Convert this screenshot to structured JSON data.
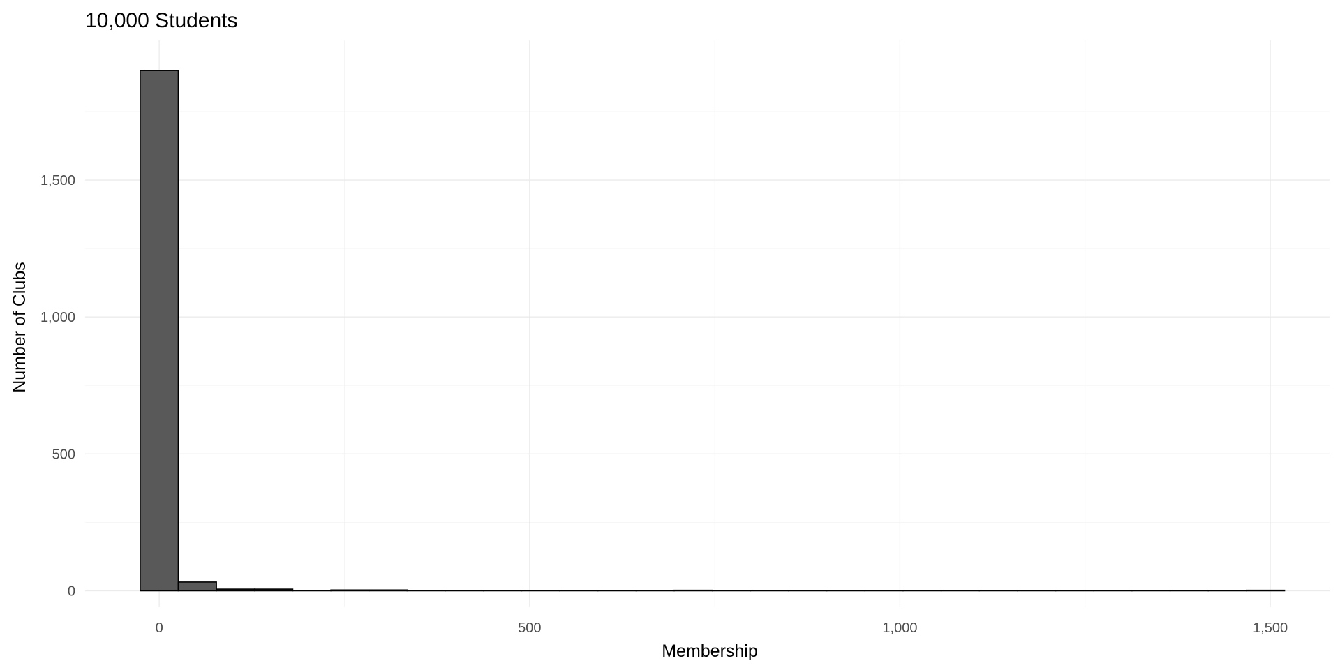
{
  "chart_data": {
    "type": "bar",
    "title": "10,000 Students",
    "xlabel": "Membership",
    "ylabel": "Number of Clubs",
    "bin_width": 51.5,
    "bins": [
      {
        "x": 0,
        "count": 1900
      },
      {
        "x": 51.5,
        "count": 32
      },
      {
        "x": 103,
        "count": 6
      },
      {
        "x": 154.5,
        "count": 6
      },
      {
        "x": 206,
        "count": 1
      },
      {
        "x": 257.5,
        "count": 3
      },
      {
        "x": 309,
        "count": 3
      },
      {
        "x": 360.5,
        "count": 1
      },
      {
        "x": 412,
        "count": 1
      },
      {
        "x": 463.5,
        "count": 1
      },
      {
        "x": 515,
        "count": 0
      },
      {
        "x": 566.5,
        "count": 0
      },
      {
        "x": 618,
        "count": 0
      },
      {
        "x": 669.5,
        "count": 1
      },
      {
        "x": 721,
        "count": 2
      },
      {
        "x": 772.5,
        "count": 0
      },
      {
        "x": 824,
        "count": 0
      },
      {
        "x": 875.5,
        "count": 0
      },
      {
        "x": 927,
        "count": 0
      },
      {
        "x": 978.5,
        "count": 0
      },
      {
        "x": 1030,
        "count": 0
      },
      {
        "x": 1081.5,
        "count": 0
      },
      {
        "x": 1133,
        "count": 0
      },
      {
        "x": 1184.5,
        "count": 0
      },
      {
        "x": 1236,
        "count": 0
      },
      {
        "x": 1287.5,
        "count": 0
      },
      {
        "x": 1339,
        "count": 0
      },
      {
        "x": 1390.5,
        "count": 0
      },
      {
        "x": 1442,
        "count": 0
      },
      {
        "x": 1493.5,
        "count": 2
      }
    ],
    "xlim": [
      -100,
      1580
    ],
    "ylim": [
      -60,
      2010
    ],
    "x_ticks": [
      0,
      500,
      1000,
      1500
    ],
    "x_tick_labels": [
      "0",
      "500",
      "1,000",
      "1,500"
    ],
    "y_ticks": [
      0,
      500,
      1000,
      1500
    ],
    "y_tick_labels": [
      "0",
      "500",
      "1,000",
      "1,500"
    ],
    "grid": true,
    "legend": "none",
    "colors": {
      "bar_fill": "#595959",
      "bar_outline": "#000000",
      "grid": "#ebebeb"
    }
  }
}
